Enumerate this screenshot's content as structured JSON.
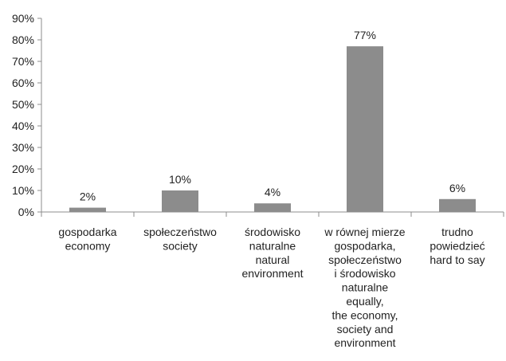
{
  "chart_data": {
    "type": "bar",
    "categories": [
      [
        "gospodarka",
        "economy"
      ],
      [
        "społeczeństwo",
        "society"
      ],
      [
        "środowisko",
        "naturalne",
        "natural",
        "environment"
      ],
      [
        "w równej mierze",
        "gospodarka,",
        "społeczeństwo",
        "i środowisko",
        "naturalne",
        "equally,",
        "the economy,",
        "society and",
        "environment"
      ],
      [
        "trudno",
        "powiedzieć",
        "hard to say"
      ]
    ],
    "values": [
      2,
      10,
      4,
      77,
      6
    ],
    "data_labels": [
      "2%",
      "10%",
      "4%",
      "77%",
      "6%"
    ],
    "yticks": [
      "0%",
      "10%",
      "20%",
      "30%",
      "40%",
      "50%",
      "60%",
      "70%",
      "80%",
      "90%"
    ],
    "ylim": [
      0,
      90
    ],
    "grid": false,
    "bar_color": "#8c8c8c",
    "axis_color": "#8c8c8c"
  }
}
